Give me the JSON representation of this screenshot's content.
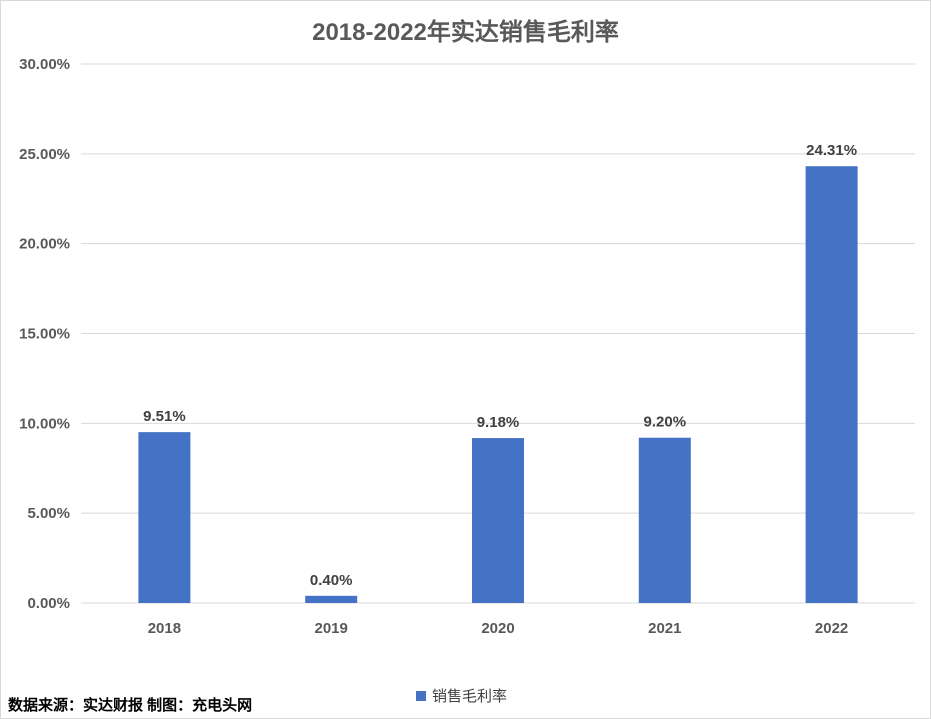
{
  "title": "2018-2022年实达销售毛利率",
  "source_note": "数据来源：实达财报 制图：充电头网",
  "colors": {
    "bar": "#4472C4",
    "grid": "#d9d9d9",
    "axis_text": "#595959",
    "label_text": "#404040"
  },
  "chart_data": {
    "type": "bar",
    "title": "2018-2022年实达销售毛利率",
    "categories": [
      "2018",
      "2019",
      "2020",
      "2021",
      "2022"
    ],
    "series": [
      {
        "name": "销售毛利率",
        "values": [
          9.51,
          0.4,
          9.18,
          9.2,
          24.31
        ],
        "labels": [
          "9.51%",
          "0.40%",
          "9.18%",
          "9.20%",
          "24.31%"
        ]
      }
    ],
    "ylim": [
      0,
      30
    ],
    "yticks": [
      0,
      5,
      10,
      15,
      20,
      25,
      30
    ],
    "ytick_labels": [
      "0.00%",
      "5.00%",
      "10.00%",
      "15.00%",
      "20.00%",
      "25.00%",
      "30.00%"
    ],
    "grid": true,
    "legend_position": "bottom"
  }
}
